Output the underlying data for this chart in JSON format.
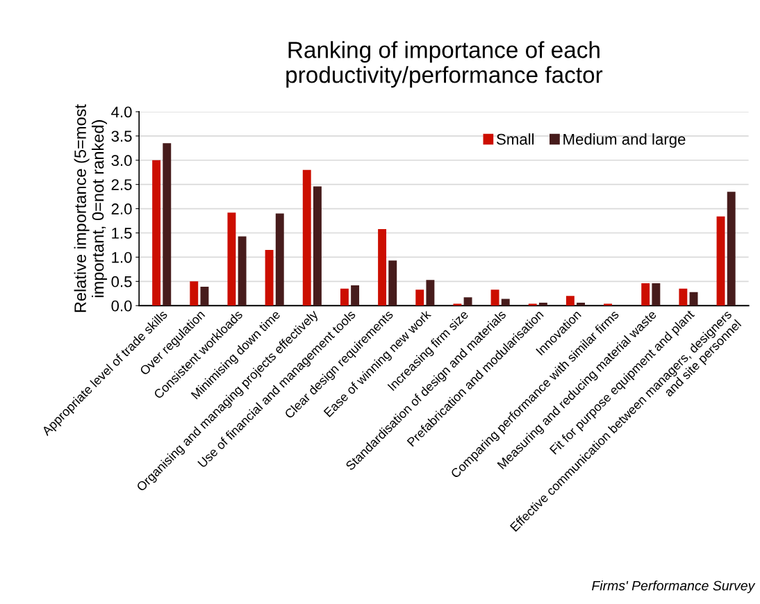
{
  "chart_data": {
    "type": "bar",
    "title": "Ranking of importance of each\nproductivity/performance factor",
    "ylabel": "Relative importance (5=most\nimportant, 0=not ranked)",
    "categories": [
      "Appropriate level of trade skills",
      "Over regulation",
      "Consistent workloads",
      "Minimising down time",
      "Organising and managing projects effectively",
      "Use of financial and management tools",
      "Clear design requirements",
      "Ease of winning new work",
      "Increasing firm size",
      "Standardisation of design and materials",
      "Prefabrication and modularisation",
      "Innovation",
      "Comparing performance with similar firms",
      "Measuring and reducing material waste",
      "Fit for purpose equipment and plant",
      "Effective communication between managers, designers\nand site personnel"
    ],
    "series": [
      {
        "name": "Small",
        "color": "#cc0e00",
        "values": [
          3.0,
          0.5,
          1.92,
          1.15,
          2.8,
          0.35,
          1.58,
          0.33,
          0.04,
          0.33,
          0.04,
          0.2,
          0.04,
          0.46,
          0.35,
          1.84
        ]
      },
      {
        "name": "Medium and large",
        "color": "#471c1c",
        "values": [
          3.35,
          0.39,
          1.43,
          1.9,
          2.46,
          0.42,
          0.93,
          0.53,
          0.17,
          0.14,
          0.06,
          0.06,
          0.0,
          0.46,
          0.28,
          2.35
        ]
      }
    ],
    "ylim": [
      0,
      4.0
    ],
    "yticks": [
      {
        "value": 0,
        "label": "0.0"
      },
      {
        "value": 0.5,
        "label": "0.5"
      },
      {
        "value": 1.0,
        "label": "1.0"
      },
      {
        "value": 1.5,
        "label": "1.5"
      },
      {
        "value": 2.0,
        "label": "2.0"
      },
      {
        "value": 2.5,
        "label": "2.5"
      },
      {
        "value": 3.0,
        "label": "3.0"
      },
      {
        "value": 3.5,
        "label": "3.5"
      },
      {
        "value": 4.0,
        "label": "4.0"
      }
    ],
    "grid": "y",
    "legend": "top right",
    "annotations": [
      "Firms' Performance Survey"
    ]
  }
}
